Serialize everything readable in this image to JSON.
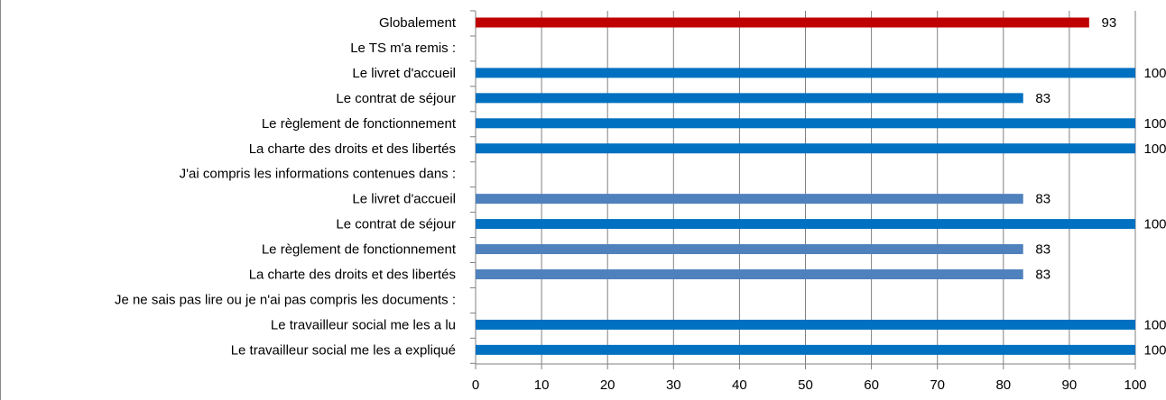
{
  "chart_data": {
    "type": "bar",
    "orientation": "horizontal",
    "title": "",
    "xlabel": "",
    "ylabel": "",
    "xlim": [
      0,
      100
    ],
    "xticks": [
      "0",
      "10",
      "20",
      "30",
      "40",
      "50",
      "60",
      "70",
      "80",
      "90",
      "100"
    ],
    "grid": "vertical",
    "categories": [
      "Globalement",
      "Le TS m'a remis :",
      "Le livret d'accueil",
      "Le contrat de séjour",
      "Le règlement de fonctionnement",
      "La charte des droits et des libertés",
      "J'ai compris les informations contenues dans :",
      "Le livret d'accueil",
      "Le contrat de séjour",
      "Le règlement de fonctionnement",
      "La charte des droits et des libertés",
      "Je ne sais pas lire ou je n'ai pas compris les documents :",
      "Le travailleur social me les a lu",
      "Le travailleur social me les a expliqué"
    ],
    "values": [
      93,
      null,
      100,
      83,
      100,
      100,
      null,
      83,
      100,
      83,
      83,
      null,
      100,
      100
    ],
    "data_labels": [
      "93",
      "",
      "100",
      "83",
      "100",
      "100",
      "",
      "83",
      "100",
      "83",
      "83",
      "",
      "100",
      "100"
    ],
    "bar_colors": [
      "#c00000",
      null,
      "#0070c0",
      "#0070c0",
      "#0070c0",
      "#0070c0",
      null,
      "#4f81bd",
      "#0070c0",
      "#4f81bd",
      "#4f81bd",
      null,
      "#0070c0",
      "#0070c0"
    ],
    "colors": {
      "grid": "#808080",
      "axis": "#808080",
      "text": "#000000"
    }
  }
}
